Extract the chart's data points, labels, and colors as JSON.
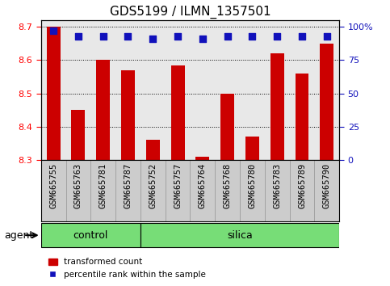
{
  "title": "GDS5199 / ILMN_1357501",
  "samples": [
    "GSM665755",
    "GSM665763",
    "GSM665781",
    "GSM665787",
    "GSM665752",
    "GSM665757",
    "GSM665764",
    "GSM665768",
    "GSM665780",
    "GSM665783",
    "GSM665789",
    "GSM665790"
  ],
  "bar_values": [
    8.7,
    8.45,
    8.6,
    8.57,
    8.36,
    8.585,
    8.31,
    8.5,
    8.37,
    8.62,
    8.56,
    8.65
  ],
  "percentile_values": [
    97,
    93,
    93,
    93,
    91,
    93,
    91,
    93,
    93,
    93,
    93,
    93
  ],
  "bar_bottom": 8.3,
  "ylim_left": [
    8.3,
    8.72
  ],
  "ylim_right": [
    0,
    105
  ],
  "yticks_left": [
    8.3,
    8.4,
    8.5,
    8.6,
    8.7
  ],
  "yticks_right": [
    0,
    25,
    50,
    75,
    100
  ],
  "bar_color": "#cc0000",
  "dot_color": "#1111bb",
  "group_color": "#77dd77",
  "plot_bg_color": "#e8e8e8",
  "label_box_color": "#cccccc",
  "background_color": "#ffffff",
  "agent_groups": [
    {
      "label": "control",
      "start": 0,
      "end": 4
    },
    {
      "label": "silica",
      "start": 4,
      "end": 12
    }
  ],
  "legend_items": [
    {
      "color": "#cc0000",
      "label": "transformed count"
    },
    {
      "color": "#1111bb",
      "label": "percentile rank within the sample"
    }
  ],
  "bar_width": 0.55,
  "dot_size": 40,
  "agent_label": "agent",
  "tick_label_fontsize": 7.5,
  "title_fontsize": 11,
  "n_samples": 12
}
